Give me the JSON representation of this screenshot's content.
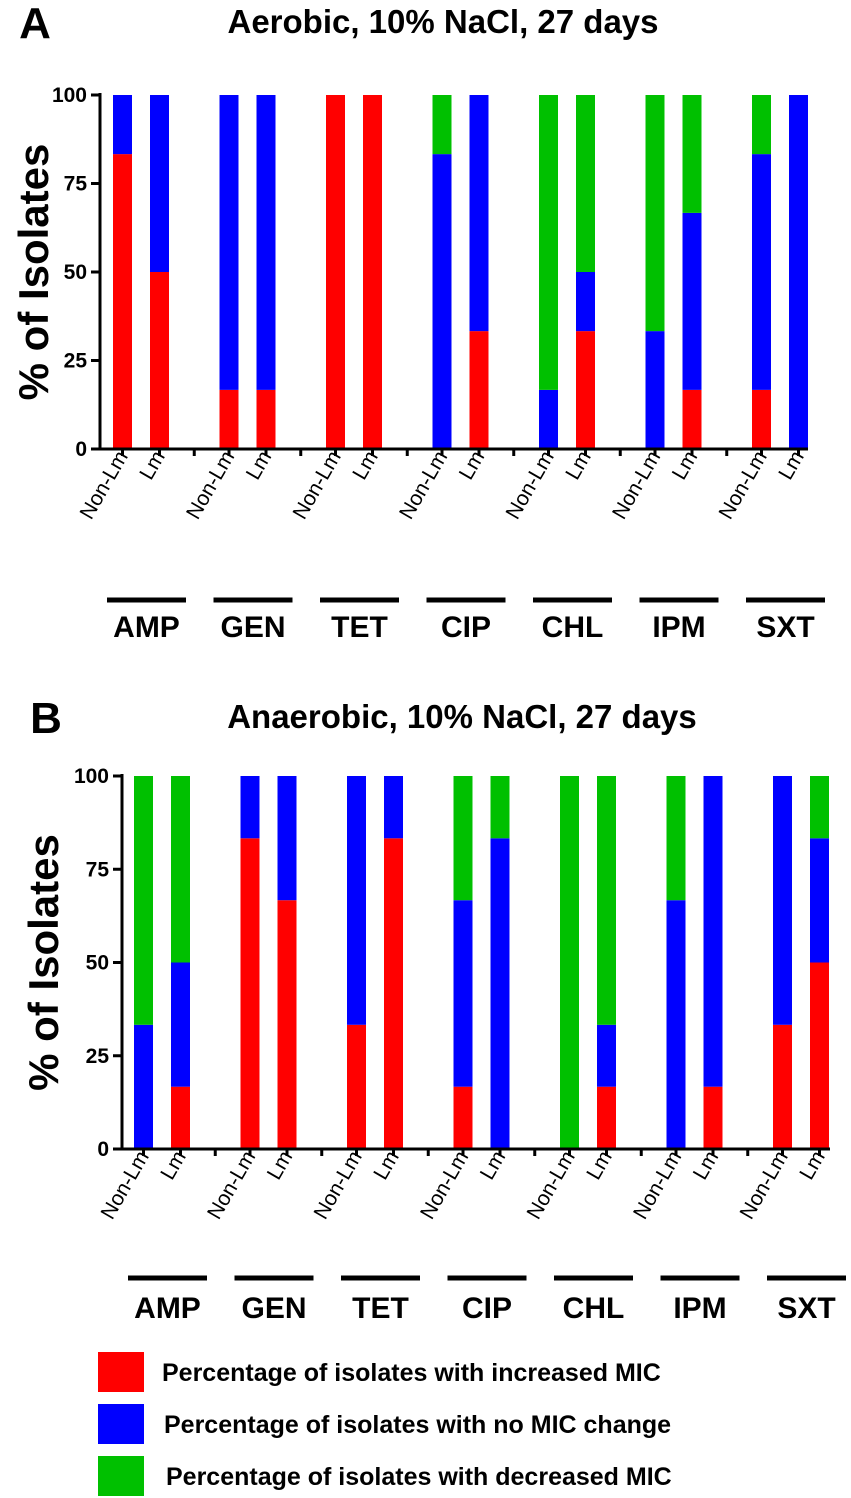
{
  "colors": {
    "increased": "#ff0000",
    "no_change": "#0000ff",
    "decreased": "#00c000",
    "axis": "#000000"
  },
  "legend": [
    {
      "key": "increased",
      "label": "Percentage of isolates with increased MIC"
    },
    {
      "key": "no_change",
      "label": "Percentage of isolates with no MIC change"
    },
    {
      "key": "decreased",
      "label": "Percentage of isolates with decreased MIC"
    }
  ],
  "chart_data": [
    {
      "type": "bar",
      "stacked": true,
      "panel": "A",
      "title": "Aerobic, 10% NaCl, 27 days",
      "ylabel": "% of Isolates",
      "xlabel": "",
      "ylim": [
        0,
        100
      ],
      "yticks": [
        "0",
        "25",
        "50",
        "75",
        "100"
      ],
      "groups": [
        "AMP",
        "GEN",
        "TET",
        "CIP",
        "CHL",
        "IPM",
        "SXT"
      ],
      "subcategories": [
        "Non-Lm",
        "Lm"
      ],
      "series": [
        {
          "name": "Percentage of isolates with increased MIC",
          "key": "increased",
          "values": [
            [
              83.3,
              50
            ],
            [
              16.7,
              16.7
            ],
            [
              100,
              100
            ],
            [
              0,
              33.3
            ],
            [
              0,
              33.3
            ],
            [
              0,
              16.7
            ],
            [
              16.7,
              0
            ]
          ]
        },
        {
          "name": "Percentage of isolates with no MIC change",
          "key": "no_change",
          "values": [
            [
              16.7,
              50
            ],
            [
              83.3,
              83.3
            ],
            [
              0,
              0
            ],
            [
              83.3,
              66.7
            ],
            [
              16.7,
              16.7
            ],
            [
              33.3,
              50
            ],
            [
              66.6,
              100
            ]
          ]
        },
        {
          "name": "Percentage of isolates with decreased MIC",
          "key": "decreased",
          "values": [
            [
              0,
              0
            ],
            [
              0,
              0
            ],
            [
              0,
              0
            ],
            [
              16.7,
              0
            ],
            [
              83.3,
              50
            ],
            [
              66.7,
              33.3
            ],
            [
              16.7,
              0
            ]
          ]
        }
      ]
    },
    {
      "type": "bar",
      "stacked": true,
      "panel": "B",
      "title": "Anaerobic, 10% NaCl, 27 days",
      "ylabel": "% of Isolates",
      "xlabel": "",
      "ylim": [
        0,
        100
      ],
      "yticks": [
        "0",
        "25",
        "50",
        "75",
        "100"
      ],
      "groups": [
        "AMP",
        "GEN",
        "TET",
        "CIP",
        "CHL",
        "IPM",
        "SXT"
      ],
      "subcategories": [
        "Non-Lm",
        "Lm"
      ],
      "series": [
        {
          "name": "Percentage of isolates with increased MIC",
          "key": "increased",
          "values": [
            [
              0,
              16.7
            ],
            [
              83.3,
              66.7
            ],
            [
              33.3,
              83.3
            ],
            [
              16.7,
              0
            ],
            [
              0,
              16.7
            ],
            [
              0,
              16.7
            ],
            [
              33.3,
              50
            ]
          ]
        },
        {
          "name": "Percentage of isolates with no MIC change",
          "key": "no_change",
          "values": [
            [
              33.3,
              33.3
            ],
            [
              16.7,
              33.3
            ],
            [
              66.7,
              16.7
            ],
            [
              50,
              83.3
            ],
            [
              0,
              16.6
            ],
            [
              66.7,
              83.3
            ],
            [
              66.7,
              33.3
            ]
          ]
        },
        {
          "name": "Percentage of isolates with decreased MIC",
          "key": "decreased",
          "values": [
            [
              66.7,
              50
            ],
            [
              0,
              0
            ],
            [
              0,
              0
            ],
            [
              33.3,
              16.7
            ],
            [
              100,
              66.7
            ],
            [
              33.3,
              0
            ],
            [
              0,
              16.7
            ]
          ]
        }
      ]
    }
  ]
}
